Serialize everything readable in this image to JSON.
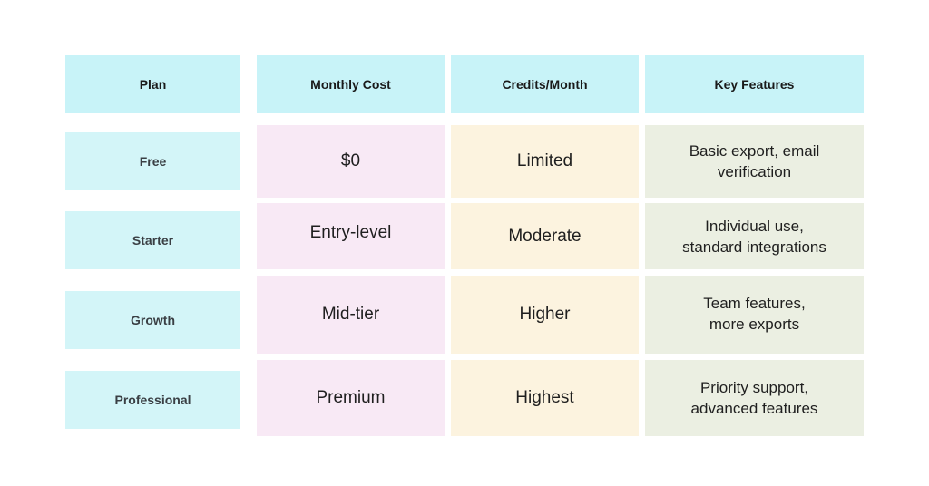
{
  "headers": [
    "Plan",
    "Monthly Cost",
    "Credits/Month",
    "Key Features"
  ],
  "rows": [
    {
      "plan": "Free",
      "cost": "$0",
      "credits": "Limited",
      "features": [
        "Basic export, email",
        "verification"
      ]
    },
    {
      "plan": "Starter",
      "cost": "Entry-level",
      "credits": "Moderate",
      "features": [
        "Individual use,",
        "standard integrations"
      ]
    },
    {
      "plan": "Growth",
      "cost": "Mid-tier",
      "credits": "Higher",
      "features": [
        "Team features,",
        "more exports"
      ]
    },
    {
      "plan": "Professional",
      "cost": "Premium",
      "credits": "Highest",
      "features": [
        "Priority support,",
        "advanced features"
      ]
    }
  ],
  "colors": {
    "header": "#c8f3f8",
    "plan": "#d3f5f8",
    "cost": "#f8e9f5",
    "credits": "#fcf3df",
    "features": "#ebefe2"
  }
}
